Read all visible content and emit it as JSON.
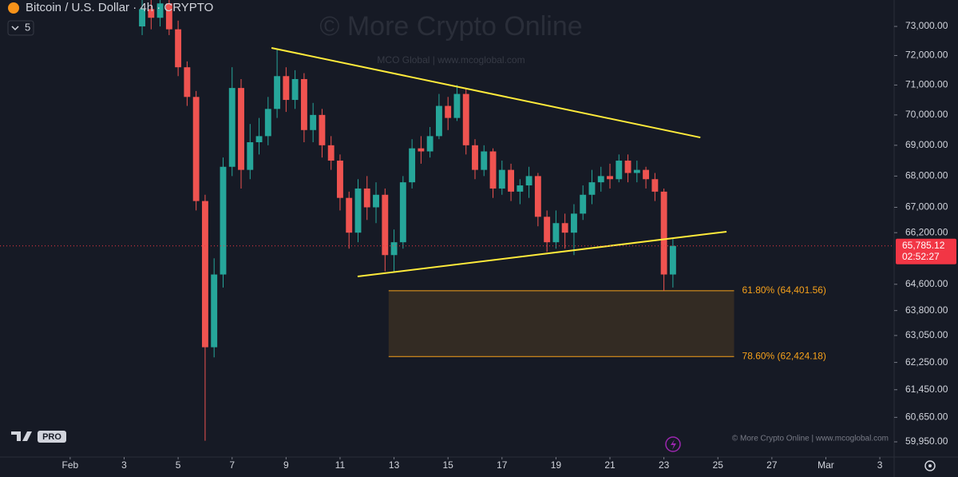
{
  "chart_data": {
    "type": "candlestick",
    "title": "Bitcoin / U.S. Dollar · 4h · CRYPTO",
    "indicator_count": "5",
    "watermark": "© More Crypto Online",
    "watermark_sub": "MCO Global   |   www.mcoglobal.com",
    "footer": "© More Crypto Online  |  www.mcoglobal.com",
    "logo_text": "PRO",
    "log_scale": true,
    "grid": false,
    "up_color": "#26a69a",
    "down_color": "#ef5350",
    "xlim": [
      -1.6,
      31.53
    ],
    "xticks": [
      {
        "value": 1,
        "label": "Feb"
      },
      3,
      5,
      7,
      9,
      11,
      13,
      15,
      17,
      19,
      21,
      23,
      25,
      27,
      {
        "value": 29,
        "label": "Mar"
      },
      {
        "value": 31,
        "label": "3"
      }
    ],
    "ylim": [
      59520,
      73920
    ],
    "yticks": [
      {
        "value": 73000,
        "label": "73,000.00"
      },
      {
        "value": 72000,
        "label": "72,000.00"
      },
      {
        "value": 71000,
        "label": "71,000.00"
      },
      {
        "value": 70000,
        "label": "70,000.00"
      },
      {
        "value": 69000,
        "label": "69,000.00"
      },
      {
        "value": 68000,
        "label": "68,000.00"
      },
      {
        "value": 67000,
        "label": "67,000.00"
      },
      {
        "value": 66200,
        "label": "66,200.00"
      },
      {
        "value": 64600,
        "label": "64,600.00"
      },
      {
        "value": 63800,
        "label": "63,800.00"
      },
      {
        "value": 63050,
        "label": "63,050.00"
      },
      {
        "value": 62250,
        "label": "62,250.00"
      },
      {
        "value": 61450,
        "label": "61,450.00"
      },
      {
        "value": 60650,
        "label": "60,650.00"
      },
      {
        "value": 59950,
        "label": "59,950.00"
      }
    ],
    "candles": {
      "x": [
        3.667,
        4,
        4.333,
        4.667,
        5,
        5.333,
        5.667,
        6,
        6.333,
        6.667,
        7,
        7.333,
        7.667,
        8,
        8.333,
        8.667,
        9,
        9.333,
        9.667,
        10,
        10.333,
        10.667,
        11,
        11.333,
        11.667,
        12,
        12.333,
        12.667,
        13,
        13.333,
        13.667,
        14,
        14.333,
        14.667,
        15,
        15.333,
        15.667,
        16,
        16.333,
        16.667,
        17,
        17.333,
        17.667,
        18,
        18.333,
        18.667,
        19,
        19.333,
        19.667,
        20,
        20.333,
        20.667,
        21,
        21.333,
        21.667,
        22,
        22.333,
        22.667,
        23,
        23.333
      ],
      "open": [
        73000,
        73600,
        73300,
        73800,
        72900,
        71600,
        70600,
        67200,
        62700,
        64900,
        68300,
        70900,
        68200,
        69100,
        69300,
        70200,
        71300,
        70500,
        71200,
        69500,
        70000,
        69000,
        68500,
        67300,
        66200,
        67600,
        67000,
        67400,
        65500,
        65900,
        67800,
        68900,
        68800,
        69300,
        70300,
        69900,
        70700,
        69000,
        68200,
        68800,
        67600,
        68200,
        67500,
        67700,
        68000,
        66700,
        65900,
        66500,
        66200,
        66800,
        67400,
        67800,
        68000,
        67900,
        68500,
        68100,
        68200,
        67900,
        67500,
        64900
      ],
      "high": [
        74200,
        74000,
        74500,
        74000,
        73200,
        71800,
        70800,
        67400,
        65400,
        68600,
        71600,
        71200,
        69700,
        69900,
        70600,
        72200,
        71600,
        71500,
        71400,
        70400,
        70200,
        69300,
        68700,
        67500,
        67900,
        68000,
        67800,
        67600,
        66300,
        68000,
        69200,
        69300,
        69600,
        70700,
        70600,
        71000,
        70900,
        69200,
        69000,
        68900,
        68500,
        68400,
        67900,
        68300,
        68100,
        66900,
        66900,
        66800,
        67100,
        67700,
        68200,
        68300,
        68400,
        68700,
        68700,
        68500,
        68300,
        68100,
        67600,
        66000
      ],
      "low": [
        72700,
        72900,
        73000,
        72700,
        71300,
        70300,
        66900,
        59980,
        62400,
        64500,
        68000,
        67600,
        67900,
        68700,
        69000,
        69900,
        70100,
        70200,
        69100,
        69100,
        68600,
        68200,
        66900,
        65700,
        65900,
        66600,
        66500,
        65000,
        65000,
        65700,
        67600,
        68400,
        68600,
        69200,
        69500,
        69800,
        68700,
        67900,
        68000,
        67300,
        67400,
        67200,
        67100,
        67300,
        66400,
        65600,
        65700,
        65700,
        65500,
        66600,
        67100,
        67500,
        67600,
        67800,
        67800,
        67800,
        67600,
        67200,
        64400,
        64500
      ],
      "close": [
        73600,
        73300,
        73800,
        72900,
        71600,
        70600,
        67200,
        62700,
        64900,
        68300,
        70900,
        68200,
        69100,
        69300,
        70200,
        71300,
        70500,
        71200,
        69500,
        70000,
        69000,
        68500,
        67300,
        66200,
        67600,
        67000,
        67400,
        65500,
        65900,
        67800,
        68900,
        68800,
        69300,
        70300,
        69900,
        70700,
        69000,
        68200,
        68800,
        67600,
        68200,
        67500,
        67700,
        68000,
        66700,
        65900,
        66500,
        66200,
        66800,
        67400,
        67800,
        68000,
        67900,
        68500,
        68100,
        68200,
        67900,
        67500,
        64900,
        65785.12
      ]
    },
    "trendlines": [
      {
        "color": "#ffeb3b",
        "x": [
          8.46,
          24.35
        ],
        "y": [
          72260,
          69256
        ]
      },
      {
        "color": "#ffeb3b",
        "x": [
          11.65,
          25.32
        ],
        "y": [
          64840,
          66230
        ]
      }
    ],
    "zone": {
      "x": [
        12.8,
        25.6
      ],
      "color": "#f7a21b"
    },
    "levels": [
      {
        "value": 64401.56,
        "label": "61.80% (64,401.56)"
      },
      {
        "value": 62424.18,
        "label": "78.60% (62,424.18)"
      }
    ],
    "last_price": {
      "value": 65785.12,
      "label": "65,785.12",
      "countdown": "02:52:27",
      "color": "#f23645"
    }
  }
}
